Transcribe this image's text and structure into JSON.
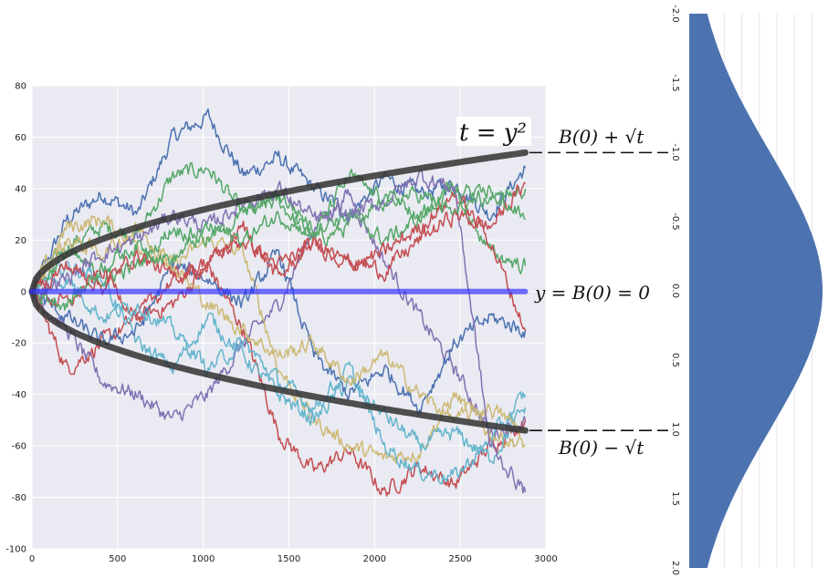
{
  "chart_data": [
    {
      "type": "line",
      "title": "",
      "xlabel": "",
      "ylabel": "",
      "xlim": [
        0,
        3000
      ],
      "ylim": [
        -100,
        80
      ],
      "x_ticks": [
        0,
        500,
        1000,
        1500,
        2000,
        2500,
        3000
      ],
      "y_ticks": [
        80,
        60,
        40,
        20,
        0,
        -20,
        -40,
        -60,
        -80,
        -100
      ],
      "grid": true,
      "background": "#eaeaf2",
      "n_steps": 2880,
      "series": [
        {
          "color": "#4c72b0",
          "values": [
            0,
            28,
            38,
            30,
            60,
            68,
            45,
            52,
            40,
            30,
            44,
            38,
            42,
            30,
            48
          ]
        },
        {
          "color": "#55a868",
          "values": [
            0,
            18,
            25,
            22,
            45,
            48,
            30,
            35,
            20,
            25,
            38,
            30,
            42,
            35,
            40
          ]
        },
        {
          "color": "#c44e52",
          "values": [
            0,
            -30,
            -20,
            -10,
            -5,
            10,
            -15,
            -55,
            -70,
            -62,
            -78,
            -68,
            -75,
            -60,
            -50
          ]
        },
        {
          "color": "#8172b2",
          "values": [
            0,
            -15,
            -35,
            -40,
            -50,
            -40,
            -20,
            -5,
            25,
            38,
            12,
            -10,
            -30,
            -55,
            -50
          ]
        },
        {
          "color": "#ccb974",
          "values": [
            0,
            25,
            28,
            18,
            10,
            20,
            15,
            -30,
            -50,
            -60,
            -65,
            -62,
            -40,
            -55,
            -60
          ]
        },
        {
          "color": "#64b5cd",
          "values": [
            0,
            10,
            5,
            -20,
            -30,
            -10,
            -25,
            -40,
            -50,
            -35,
            -48,
            -60,
            -55,
            -65,
            -45
          ]
        },
        {
          "color": "#4c72b0",
          "values": [
            0,
            -10,
            -20,
            -15,
            10,
            5,
            -5,
            15,
            -25,
            -40,
            -30,
            -45,
            -20,
            -10,
            -15
          ]
        },
        {
          "color": "#55a868",
          "values": [
            0,
            15,
            5,
            10,
            25,
            20,
            30,
            38,
            25,
            30,
            20,
            28,
            40,
            15,
            10
          ]
        },
        {
          "color": "#c44e52",
          "values": [
            0,
            -5,
            8,
            -10,
            5,
            10,
            25,
            5,
            20,
            10,
            15,
            25,
            38,
            20,
            -15
          ]
        },
        {
          "color": "#64b5cd",
          "values": [
            0,
            5,
            -10,
            -5,
            -15,
            -30,
            -20,
            -35,
            -45,
            -30,
            -60,
            -70,
            -72,
            -58,
            -40
          ]
        },
        {
          "color": "#ccb974",
          "values": [
            0,
            20,
            15,
            25,
            10,
            -5,
            -15,
            -25,
            -20,
            -35,
            -25,
            -40,
            -50,
            -45,
            -55
          ]
        },
        {
          "color": "#8172b2",
          "values": [
            0,
            5,
            15,
            20,
            30,
            25,
            35,
            40,
            28,
            30,
            35,
            45,
            40,
            -60,
            -78
          ]
        },
        {
          "color": "#c44e52",
          "values": [
            0,
            10,
            2,
            15,
            5,
            12,
            20,
            10,
            18,
            12,
            8,
            20,
            30,
            25,
            42
          ]
        },
        {
          "color": "#55a868",
          "values": [
            0,
            -5,
            10,
            18,
            12,
            25,
            20,
            30,
            22,
            45,
            35,
            38,
            30,
            40,
            28
          ]
        }
      ],
      "envelope": {
        "color": "#333333",
        "t_max": 2880,
        "label_upper": "B(0) + √t",
        "label_lower": "B(0) − √t",
        "label_curve": "t = y²"
      },
      "mean_line": {
        "color": "#3333ff",
        "y": 0,
        "label": "y = B(0) = 0"
      }
    },
    {
      "type": "area",
      "orientation": "horizontal",
      "title": "",
      "ylim": [
        -2.0,
        2.0
      ],
      "y_ticks": [
        -2.0,
        -1.5,
        -1.0,
        -0.5,
        0.0,
        0.5,
        1.0,
        1.5,
        2.0
      ],
      "y_tick_labels": [
        "-2.0",
        "-1.5",
        "-1.0",
        "-0.5",
        "0.0",
        "0.5",
        "1.0",
        "1.5",
        "2.0"
      ],
      "fill_color": "#4c72b0",
      "distribution": "normal",
      "sigma": 1.0
    }
  ]
}
